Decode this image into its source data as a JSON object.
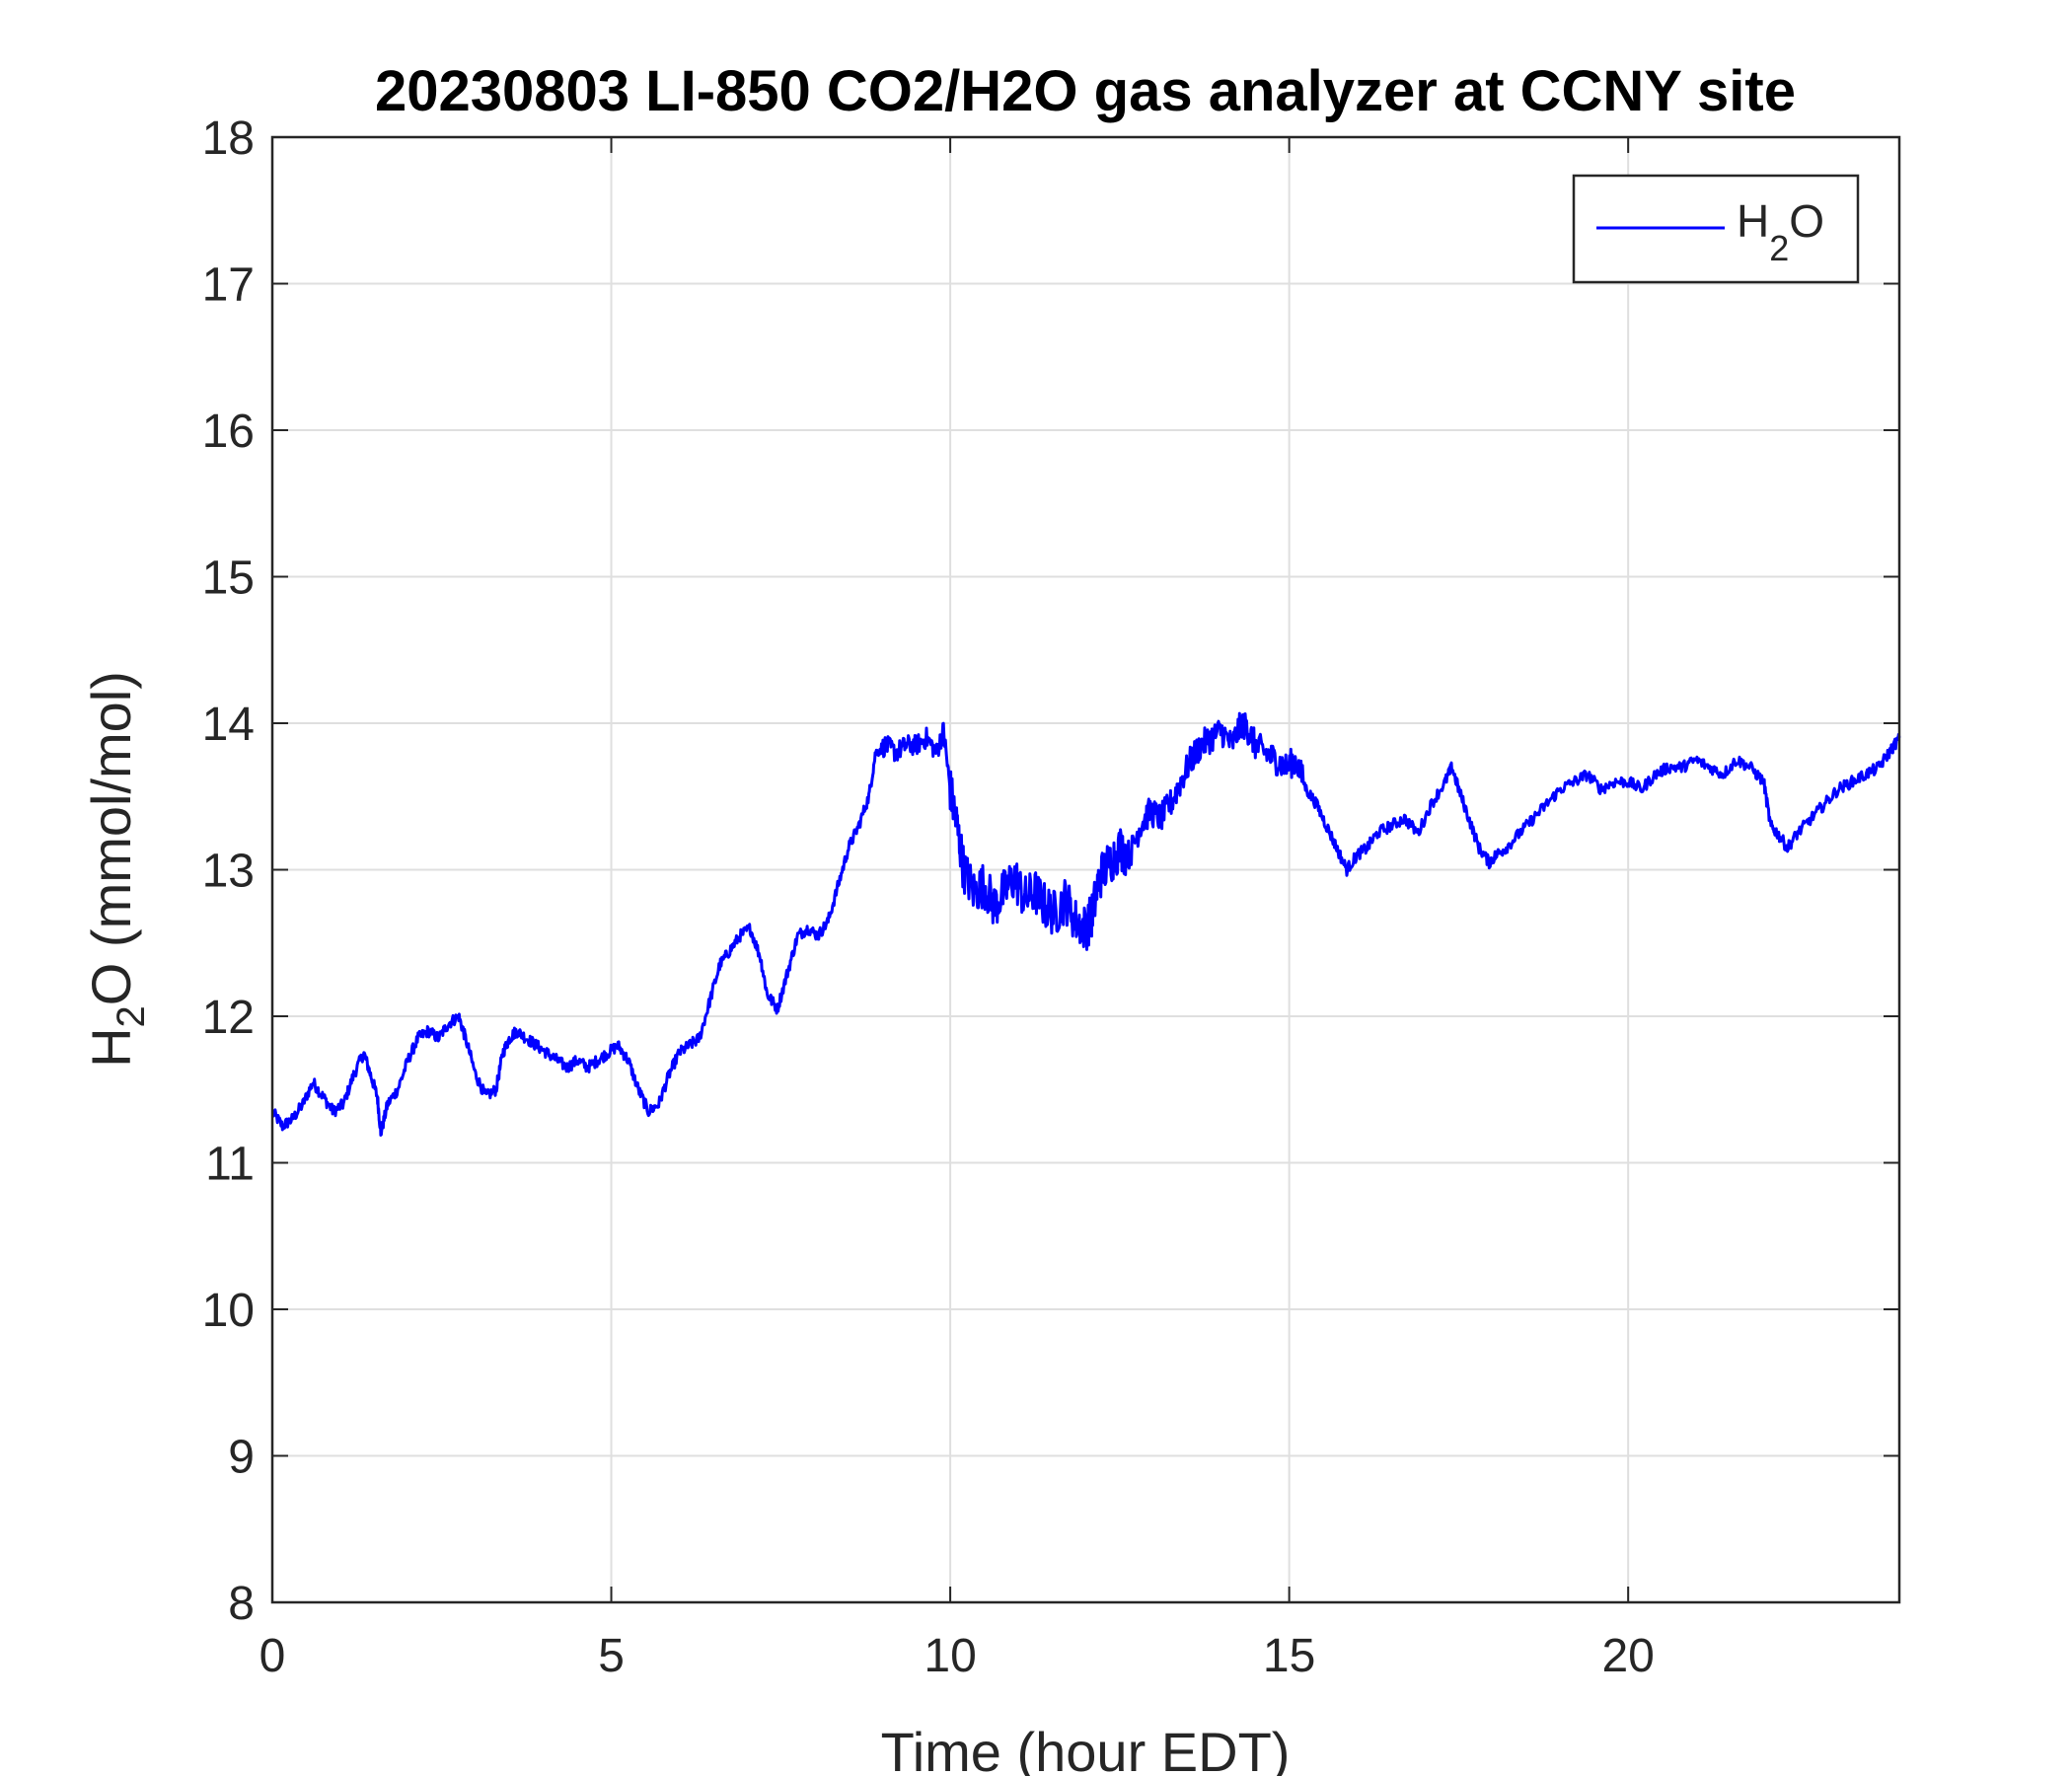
{
  "chart_data": {
    "type": "line",
    "title": "20230803 LI-850 CO2/H2O gas analyzer at CCNY site",
    "xlabel": "Time (hour EDT)",
    "ylabel": {
      "pre": "H",
      "sub": "2",
      "post": "O (mmol/mol)"
    },
    "xlim": [
      0,
      24
    ],
    "ylim": [
      8,
      18
    ],
    "xticks": [
      0,
      5,
      10,
      15,
      20
    ],
    "yticks": [
      8,
      9,
      10,
      11,
      12,
      13,
      14,
      15,
      16,
      17,
      18
    ],
    "grid": true,
    "legend_position": "top-right",
    "series": [
      {
        "name": "H2O",
        "legend": {
          "pre": "H",
          "sub": "2",
          "post": "O"
        },
        "color": "#0000ff",
        "x": [
          0,
          0.15,
          0.3,
          0.45,
          0.6,
          0.75,
          0.9,
          1.05,
          1.2,
          1.35,
          1.45,
          1.55,
          1.6,
          1.7,
          1.85,
          2.0,
          2.15,
          2.3,
          2.45,
          2.6,
          2.75,
          2.85,
          3.0,
          3.15,
          3.3,
          3.4,
          3.5,
          3.6,
          3.75,
          3.9,
          4.05,
          4.2,
          4.35,
          4.5,
          4.65,
          4.8,
          4.95,
          5.1,
          5.25,
          5.4,
          5.55,
          5.7,
          5.85,
          6.0,
          6.15,
          6.3,
          6.45,
          6.6,
          6.75,
          6.9,
          7.05,
          7.2,
          7.3,
          7.45,
          7.6,
          7.75,
          7.9,
          8.05,
          8.2,
          8.35,
          8.5,
          8.65,
          8.8,
          8.9,
          9.05,
          9.2,
          9.35,
          9.5,
          9.65,
          9.8,
          9.9,
          10.0,
          10.1,
          10.2,
          10.35,
          10.5,
          10.65,
          10.8,
          10.95,
          11.1,
          11.25,
          11.4,
          11.55,
          11.7,
          11.85,
          12.0,
          12.1,
          12.2,
          12.35,
          12.5,
          12.65,
          12.8,
          12.95,
          13.1,
          13.25,
          13.4,
          13.55,
          13.7,
          13.85,
          14.0,
          14.15,
          14.3,
          14.4,
          14.5,
          14.65,
          14.8,
          14.95,
          15.1,
          15.25,
          15.4,
          15.55,
          15.7,
          15.85,
          16.0,
          16.15,
          16.3,
          16.5,
          16.7,
          16.9,
          17.1,
          17.3,
          17.4,
          17.5,
          17.65,
          17.8,
          17.95,
          18.05,
          18.2,
          18.4,
          18.6,
          18.8,
          19.0,
          19.2,
          19.4,
          19.6,
          19.8,
          20.0,
          20.2,
          20.4,
          20.6,
          20.8,
          21.0,
          21.2,
          21.4,
          21.6,
          21.8,
          22.0,
          22.1,
          22.2,
          22.35,
          22.5,
          22.7,
          22.9,
          23.1,
          23.3,
          23.5,
          23.7,
          23.85,
          24.0
        ],
        "y": [
          11.35,
          11.25,
          11.3,
          11.4,
          11.55,
          11.45,
          11.35,
          11.4,
          11.6,
          11.75,
          11.6,
          11.45,
          11.2,
          11.4,
          11.5,
          11.7,
          11.85,
          11.9,
          11.85,
          11.95,
          12.0,
          11.85,
          11.6,
          11.45,
          11.5,
          11.75,
          11.85,
          11.9,
          11.85,
          11.8,
          11.75,
          11.7,
          11.65,
          11.7,
          11.65,
          11.7,
          11.75,
          11.8,
          11.7,
          11.5,
          11.35,
          11.4,
          11.6,
          11.75,
          11.8,
          11.85,
          12.1,
          12.35,
          12.45,
          12.55,
          12.6,
          12.4,
          12.15,
          12.05,
          12.3,
          12.55,
          12.6,
          12.55,
          12.65,
          12.9,
          13.15,
          13.3,
          13.5,
          13.8,
          13.85,
          13.8,
          13.85,
          13.85,
          13.9,
          13.8,
          13.95,
          13.55,
          13.3,
          13.0,
          12.85,
          12.9,
          12.75,
          12.85,
          12.95,
          12.8,
          12.85,
          12.75,
          12.7,
          12.8,
          12.65,
          12.6,
          12.7,
          12.95,
          13.05,
          13.15,
          13.1,
          13.3,
          13.4,
          13.35,
          13.45,
          13.6,
          13.75,
          13.85,
          13.9,
          13.95,
          13.85,
          14.0,
          13.95,
          13.85,
          13.8,
          13.75,
          13.7,
          13.75,
          13.55,
          13.45,
          13.3,
          13.15,
          13.0,
          13.1,
          13.15,
          13.25,
          13.3,
          13.35,
          13.25,
          13.45,
          13.6,
          13.7,
          13.55,
          13.35,
          13.15,
          13.05,
          13.1,
          13.15,
          13.25,
          13.35,
          13.45,
          13.55,
          13.6,
          13.65,
          13.55,
          13.6,
          13.6,
          13.55,
          13.65,
          13.7,
          13.7,
          13.75,
          13.7,
          13.65,
          13.75,
          13.7,
          13.6,
          13.3,
          13.25,
          13.15,
          13.25,
          13.35,
          13.45,
          13.55,
          13.6,
          13.65,
          13.7,
          13.8,
          13.9
        ]
      }
    ]
  }
}
